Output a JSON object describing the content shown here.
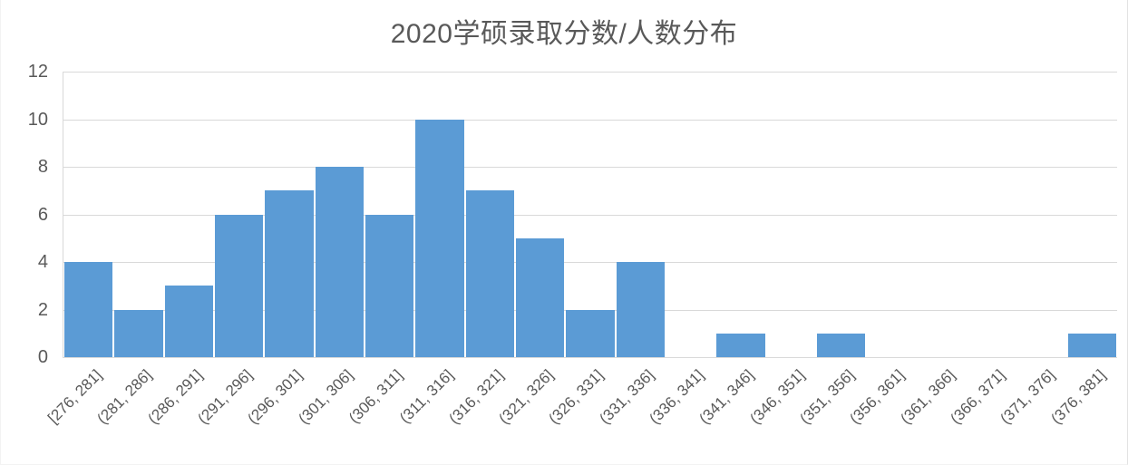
{
  "chart_data": {
    "type": "bar",
    "title": "2020学硕录取分数/人数分布",
    "categories": [
      "[276, 281]",
      "(281, 286]",
      "(286, 291]",
      "(291, 296]",
      "(296, 301]",
      "(301, 306]",
      "(306, 311]",
      "(311, 316]",
      "(316, 321]",
      "(321, 326]",
      "(326, 331]",
      "(331, 336]",
      "(336, 341]",
      "(341, 346]",
      "(346, 351]",
      "(351, 356]",
      "(356, 361]",
      "(361, 366]",
      "(366, 371]",
      "(371, 376]",
      "(376, 381]"
    ],
    "values": [
      4,
      2,
      3,
      6,
      7,
      8,
      6,
      10,
      7,
      5,
      2,
      4,
      0,
      1,
      0,
      1,
      0,
      0,
      0,
      0,
      1
    ],
    "xlabel": "",
    "ylabel": "",
    "ylim": [
      0,
      12
    ],
    "yticks": [
      0,
      2,
      4,
      6,
      8,
      10,
      12
    ],
    "grid": true,
    "legend": false,
    "colors": {
      "bar": "#5B9BD5",
      "gridline": "#D9D9D9",
      "axis_line": "#D9D9D9",
      "axis_text": "#595959",
      "title_text": "#595959"
    }
  }
}
